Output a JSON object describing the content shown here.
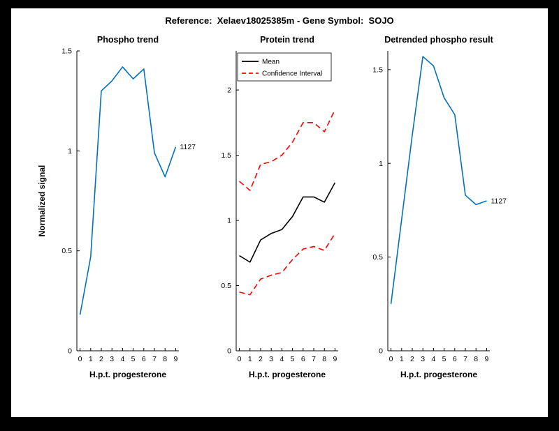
{
  "figure_title": "Reference:  Xelaev18025385m - Gene Symbol:  SOJO",
  "colors": {
    "blue": "#0072BD",
    "red": "#FF0000",
    "black": "#000000"
  },
  "chart_data": [
    {
      "type": "line",
      "title": "Phospho trend",
      "xlabel": "H.p.t. progesterone",
      "ylabel": "Normalized signal",
      "x": [
        0,
        1,
        2,
        3,
        4,
        5,
        6,
        7,
        8,
        9
      ],
      "xlim": [
        -0.3,
        9.3
      ],
      "ylim": [
        0,
        1.5
      ],
      "xticks": [
        0,
        1,
        2,
        3,
        4,
        5,
        6,
        7,
        8,
        9
      ],
      "yticks": [
        0,
        0.5,
        1,
        1.5
      ],
      "grid": false,
      "legend": null,
      "series": [
        {
          "name": "1127",
          "color": "#0072BD",
          "dash": "solid",
          "values": [
            0.18,
            0.47,
            1.3,
            1.35,
            1.42,
            1.36,
            1.41,
            0.99,
            0.87,
            1.02
          ]
        }
      ],
      "end_label": "1127"
    },
    {
      "type": "line",
      "title": "Protein trend",
      "xlabel": "H.p.t. progesterone",
      "ylabel": "",
      "x": [
        0,
        1,
        2,
        3,
        4,
        5,
        6,
        7,
        8,
        9
      ],
      "xlim": [
        -0.3,
        9.3
      ],
      "ylim": [
        0,
        2.3
      ],
      "xticks": [
        0,
        1,
        2,
        3,
        4,
        5,
        6,
        7,
        8,
        9
      ],
      "yticks": [
        0,
        0.5,
        1,
        1.5,
        2
      ],
      "grid": false,
      "legend": {
        "position": "top-left",
        "entries": [
          {
            "label": "Mean",
            "color": "#000000",
            "dash": "solid"
          },
          {
            "label": "Confidence Interval",
            "color": "#FF0000",
            "dash": "dashed"
          }
        ]
      },
      "series": [
        {
          "name": "Mean",
          "color": "#000000",
          "dash": "solid",
          "values": [
            0.73,
            0.68,
            0.85,
            0.9,
            0.93,
            1.03,
            1.18,
            1.18,
            1.14,
            1.29
          ]
        },
        {
          "name": "Confidence Interval upper",
          "color": "#FF0000",
          "dash": "dashed",
          "values": [
            1.3,
            1.23,
            1.43,
            1.45,
            1.5,
            1.6,
            1.75,
            1.75,
            1.68,
            1.85
          ]
        },
        {
          "name": "Confidence Interval lower",
          "color": "#FF0000",
          "dash": "dashed",
          "values": [
            0.45,
            0.43,
            0.55,
            0.58,
            0.6,
            0.7,
            0.78,
            0.8,
            0.77,
            0.9
          ]
        }
      ],
      "end_label": null
    },
    {
      "type": "line",
      "title": "Detrended phospho result",
      "xlabel": "H.p.t. progesterone",
      "ylabel": "",
      "x": [
        0,
        1,
        2,
        3,
        4,
        5,
        6,
        7,
        8,
        9
      ],
      "xlim": [
        -0.3,
        9.3
      ],
      "ylim": [
        0,
        1.6
      ],
      "xticks": [
        0,
        1,
        2,
        3,
        4,
        5,
        6,
        7,
        8,
        9
      ],
      "yticks": [
        0,
        0.5,
        1,
        1.5
      ],
      "grid": false,
      "legend": null,
      "series": [
        {
          "name": "1127",
          "color": "#0072BD",
          "dash": "solid",
          "values": [
            0.25,
            0.7,
            1.15,
            1.57,
            1.52,
            1.35,
            1.26,
            0.83,
            0.78,
            0.8
          ]
        }
      ],
      "end_label": "1127"
    }
  ]
}
